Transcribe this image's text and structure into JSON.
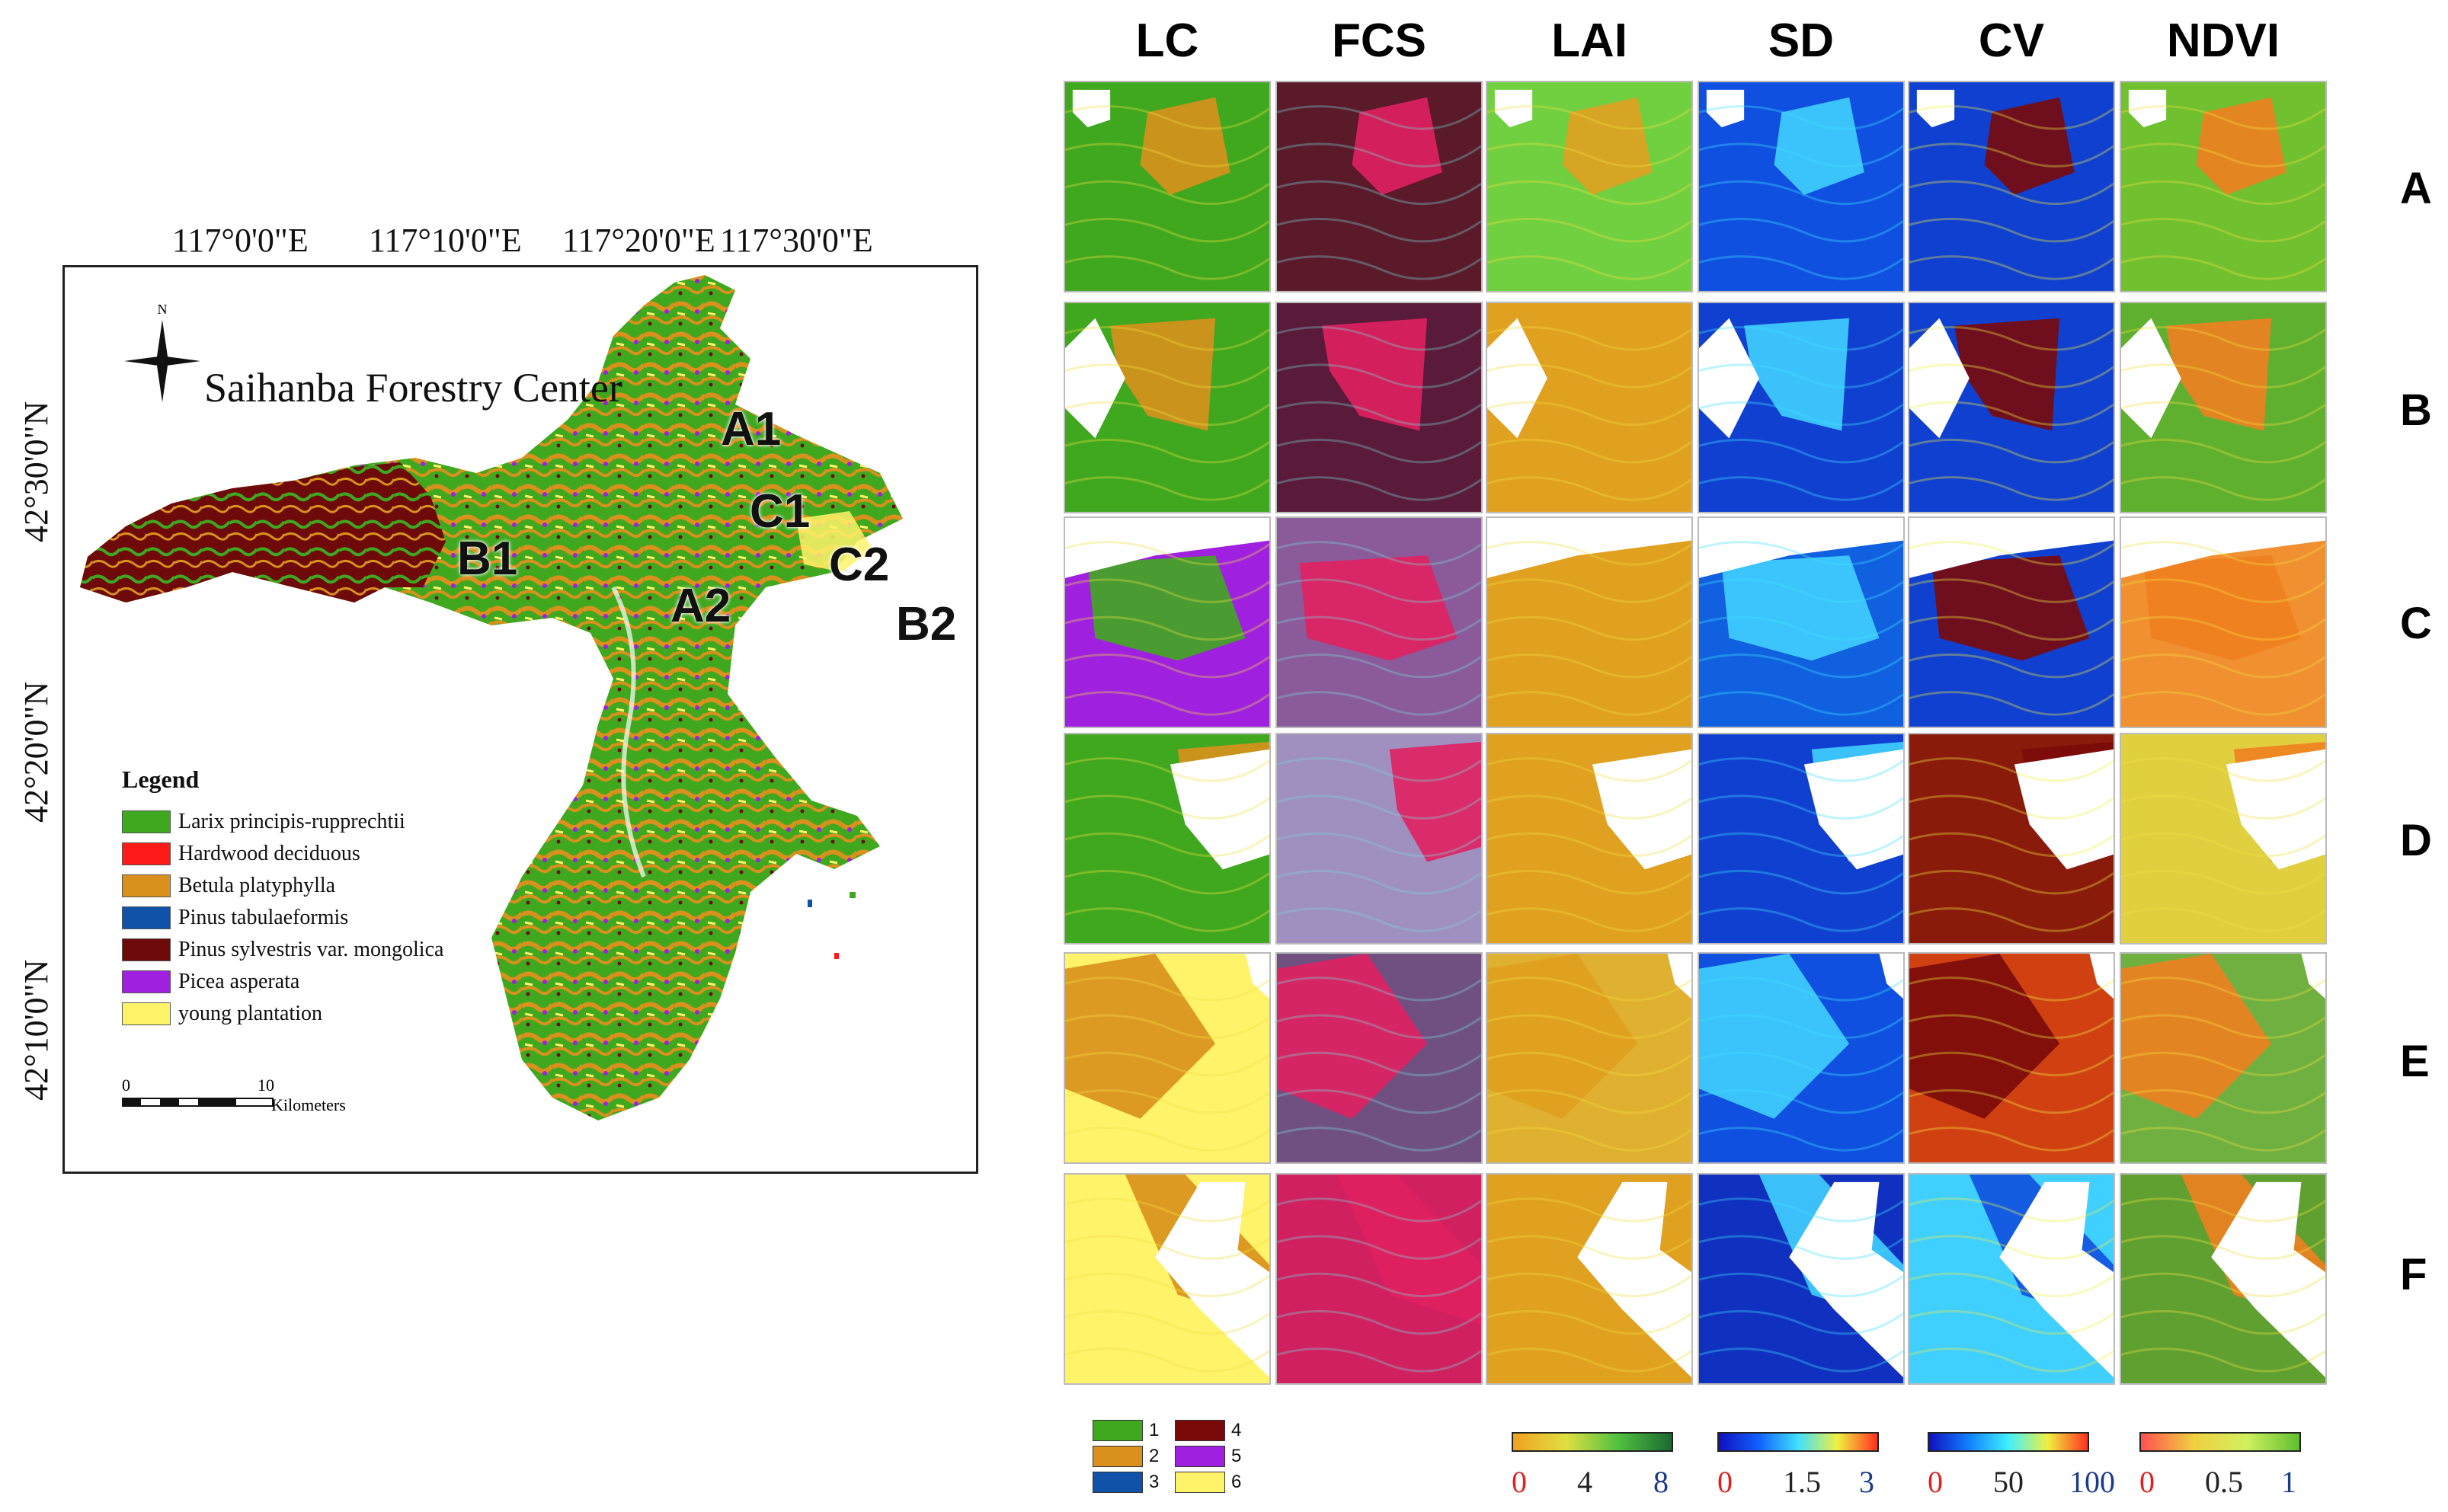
{
  "map": {
    "title": "Saihanba Forestry Center",
    "north": "N",
    "lon_ticks": [
      "117°0'0\"E",
      "117°10'0\"E",
      "117°20'0\"E",
      "117°30'0\"E"
    ],
    "lat_ticks": [
      "42°30'0\"N",
      "42°20'0\"N",
      "42°10'0\"N"
    ],
    "sites": [
      "A1",
      "B1",
      "C1",
      "C2",
      "A2",
      "B2"
    ],
    "legend_title": "Legend",
    "legend": [
      {
        "label": "Larix principis-rupprechtii",
        "color": "#3fa81f"
      },
      {
        "label": "Hardwood deciduous",
        "color": "#ff1a1a"
      },
      {
        "label": "Betula platyphylla",
        "color": "#d9901c"
      },
      {
        "label": "Pinus tabulaeformis",
        "color": "#1052a8"
      },
      {
        "label": "Pinus sylvestris var. mongolica",
        "color": "#6e0a0a"
      },
      {
        "label": "Picea asperata",
        "color": "#a020e0"
      },
      {
        "label": "young plantation",
        "color": "#fff36a"
      }
    ],
    "scale": {
      "zero": "0",
      "ten": "10",
      "unit": "Kilometers"
    }
  },
  "grid": {
    "columns": [
      "LC",
      "FCS",
      "LAI",
      "SD",
      "CV",
      "NDVI"
    ],
    "rows": [
      "A",
      "B",
      "C",
      "D",
      "E",
      "F"
    ]
  },
  "lc_key": [
    {
      "label": "1",
      "color": "#3fa81f"
    },
    {
      "label": "4",
      "color": "#7a0a0a"
    },
    {
      "label": "2",
      "color": "#d9901c"
    },
    {
      "label": "5",
      "color": "#a020e0"
    },
    {
      "label": "3",
      "color": "#1052a8"
    },
    {
      "label": "6",
      "color": "#fff36a"
    }
  ],
  "colorbars": [
    {
      "name": "LAI",
      "ticks": [
        "0",
        "4",
        "8"
      ],
      "tick_colors": [
        "#e02020",
        "#222222",
        "#1a3a8a"
      ],
      "colors": [
        "#f0a020",
        "#e0e040",
        "#50c040",
        "#1a6a30"
      ]
    },
    {
      "name": "SD",
      "ticks": [
        "0",
        "1.5",
        "3"
      ],
      "tick_colors": [
        "#e02020",
        "#222222",
        "#1a3a8a"
      ],
      "colors": [
        "#1010c0",
        "#1060ff",
        "#40e0ff",
        "#f0f040",
        "#ff3020"
      ]
    },
    {
      "name": "CV",
      "ticks": [
        "0",
        "50",
        "100"
      ],
      "tick_colors": [
        "#e02020",
        "#222222",
        "#1a3a8a"
      ],
      "colors": [
        "#1010c0",
        "#1080ff",
        "#40f0ff",
        "#f0f040",
        "#ff3020"
      ]
    },
    {
      "name": "NDVI",
      "ticks": [
        "0",
        "0.5",
        "1"
      ],
      "tick_colors": [
        "#e02020",
        "#222222",
        "#1a3a8a"
      ],
      "colors": [
        "#ff5050",
        "#f0d040",
        "#d0f060",
        "#60c030"
      ]
    }
  ]
}
